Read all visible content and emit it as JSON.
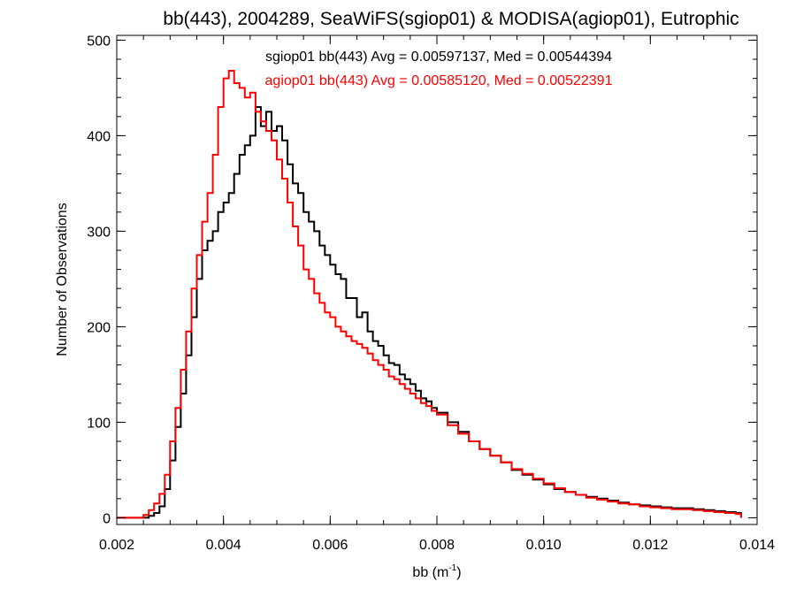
{
  "chart_data": {
    "type": "line",
    "title": "bb(443), 2004289, SeaWiFS(sgiop01) & MODISA(agiop01), Eutrophic",
    "xlabel_main": "bb (m",
    "xlabel_sup": "-1",
    "xlabel_close": ")",
    "ylabel": "Number of Observations",
    "xlim": [
      0.002,
      0.014
    ],
    "ylim": [
      -7,
      505
    ],
    "x_ticks": [
      "0.002",
      "0.004",
      "0.006",
      "0.008",
      "0.010",
      "0.012",
      "0.014"
    ],
    "y_ticks": [
      "0",
      "100",
      "200",
      "300",
      "400",
      "500"
    ],
    "grid": false,
    "step": true,
    "series": [
      {
        "name": "sgiop01 bb(443) Avg = 0.00597137, Med = 0.00544394",
        "color": "#000000",
        "points": [
          [
            0.002,
            0
          ],
          [
            0.0025,
            0
          ],
          [
            0.0026,
            2
          ],
          [
            0.0027,
            5
          ],
          [
            0.0028,
            12
          ],
          [
            0.0029,
            30
          ],
          [
            0.003,
            60
          ],
          [
            0.0031,
            95
          ],
          [
            0.0032,
            130
          ],
          [
            0.0033,
            170
          ],
          [
            0.0034,
            210
          ],
          [
            0.0035,
            250
          ],
          [
            0.0036,
            280
          ],
          [
            0.0037,
            290
          ],
          [
            0.0038,
            300
          ],
          [
            0.0039,
            320
          ],
          [
            0.004,
            330
          ],
          [
            0.0041,
            340
          ],
          [
            0.0042,
            360
          ],
          [
            0.0043,
            380
          ],
          [
            0.0044,
            390
          ],
          [
            0.0045,
            400
          ],
          [
            0.0046,
            430
          ],
          [
            0.0047,
            410
          ],
          [
            0.0048,
            425
          ],
          [
            0.0049,
            405
          ],
          [
            0.005,
            410
          ],
          [
            0.0051,
            395
          ],
          [
            0.0052,
            370
          ],
          [
            0.0053,
            350
          ],
          [
            0.0054,
            340
          ],
          [
            0.0055,
            320
          ],
          [
            0.0056,
            310
          ],
          [
            0.0057,
            300
          ],
          [
            0.0058,
            285
          ],
          [
            0.0059,
            275
          ],
          [
            0.006,
            265
          ],
          [
            0.0061,
            255
          ],
          [
            0.0062,
            250
          ],
          [
            0.0063,
            230
          ],
          [
            0.0064,
            230
          ],
          [
            0.0065,
            210
          ],
          [
            0.0066,
            215
          ],
          [
            0.0067,
            195
          ],
          [
            0.0068,
            185
          ],
          [
            0.0069,
            180
          ],
          [
            0.007,
            170
          ],
          [
            0.0071,
            162
          ],
          [
            0.0072,
            160
          ],
          [
            0.0073,
            150
          ],
          [
            0.0074,
            145
          ],
          [
            0.0075,
            140
          ],
          [
            0.0076,
            133
          ],
          [
            0.0077,
            125
          ],
          [
            0.0078,
            122
          ],
          [
            0.0079,
            115
          ],
          [
            0.008,
            110
          ],
          [
            0.0082,
            100
          ],
          [
            0.0084,
            90
          ],
          [
            0.0086,
            80
          ],
          [
            0.0088,
            72
          ],
          [
            0.009,
            65
          ],
          [
            0.0092,
            58
          ],
          [
            0.0094,
            50
          ],
          [
            0.0096,
            45
          ],
          [
            0.0098,
            40
          ],
          [
            0.01,
            35
          ],
          [
            0.0102,
            30
          ],
          [
            0.0104,
            27
          ],
          [
            0.0106,
            24
          ],
          [
            0.0108,
            22
          ],
          [
            0.011,
            20
          ],
          [
            0.0112,
            18
          ],
          [
            0.0114,
            16
          ],
          [
            0.0116,
            14
          ],
          [
            0.0118,
            13
          ],
          [
            0.012,
            12
          ],
          [
            0.0122,
            11
          ],
          [
            0.0124,
            10
          ],
          [
            0.0126,
            10
          ],
          [
            0.0128,
            9
          ],
          [
            0.013,
            8
          ],
          [
            0.0132,
            7
          ],
          [
            0.0134,
            6
          ],
          [
            0.0136,
            5
          ],
          [
            0.0137,
            0
          ]
        ]
      },
      {
        "name": "agiop01 bb(443) Avg = 0.00585120, Med = 0.00522391",
        "color": "#ff0000",
        "points": [
          [
            0.002,
            0
          ],
          [
            0.0024,
            0
          ],
          [
            0.0025,
            3
          ],
          [
            0.0026,
            8
          ],
          [
            0.0027,
            15
          ],
          [
            0.0028,
            25
          ],
          [
            0.0029,
            45
          ],
          [
            0.003,
            80
          ],
          [
            0.0031,
            115
          ],
          [
            0.0032,
            155
          ],
          [
            0.0033,
            195
          ],
          [
            0.0034,
            240
          ],
          [
            0.0035,
            275
          ],
          [
            0.0036,
            310
          ],
          [
            0.0037,
            340
          ],
          [
            0.0038,
            380
          ],
          [
            0.0039,
            430
          ],
          [
            0.004,
            460
          ],
          [
            0.0041,
            468
          ],
          [
            0.0042,
            455
          ],
          [
            0.0043,
            450
          ],
          [
            0.0044,
            440
          ],
          [
            0.0045,
            445
          ],
          [
            0.0046,
            425
          ],
          [
            0.0047,
            415
          ],
          [
            0.0048,
            405
          ],
          [
            0.0049,
            395
          ],
          [
            0.005,
            375
          ],
          [
            0.0051,
            355
          ],
          [
            0.0052,
            330
          ],
          [
            0.0053,
            305
          ],
          [
            0.0054,
            285
          ],
          [
            0.0055,
            260
          ],
          [
            0.0056,
            250
          ],
          [
            0.0057,
            235
          ],
          [
            0.0058,
            225
          ],
          [
            0.0059,
            215
          ],
          [
            0.006,
            210
          ],
          [
            0.0061,
            200
          ],
          [
            0.0062,
            195
          ],
          [
            0.0063,
            190
          ],
          [
            0.0064,
            185
          ],
          [
            0.0065,
            182
          ],
          [
            0.0066,
            178
          ],
          [
            0.0067,
            172
          ],
          [
            0.0068,
            165
          ],
          [
            0.0069,
            160
          ],
          [
            0.007,
            155
          ],
          [
            0.0071,
            148
          ],
          [
            0.0072,
            145
          ],
          [
            0.0073,
            140
          ],
          [
            0.0074,
            135
          ],
          [
            0.0075,
            130
          ],
          [
            0.0076,
            125
          ],
          [
            0.0077,
            120
          ],
          [
            0.0078,
            117
          ],
          [
            0.0079,
            112
          ],
          [
            0.008,
            108
          ],
          [
            0.0082,
            97
          ],
          [
            0.0084,
            88
          ],
          [
            0.0086,
            80
          ],
          [
            0.0088,
            72
          ],
          [
            0.009,
            65
          ],
          [
            0.0092,
            58
          ],
          [
            0.0094,
            51
          ],
          [
            0.0096,
            46
          ],
          [
            0.0098,
            41
          ],
          [
            0.01,
            36
          ],
          [
            0.0102,
            31
          ],
          [
            0.0104,
            27
          ],
          [
            0.0106,
            24
          ],
          [
            0.0108,
            21
          ],
          [
            0.011,
            19
          ],
          [
            0.0112,
            17
          ],
          [
            0.0114,
            15
          ],
          [
            0.0116,
            14
          ],
          [
            0.0118,
            12
          ],
          [
            0.012,
            11
          ],
          [
            0.0122,
            10
          ],
          [
            0.0124,
            9
          ],
          [
            0.0126,
            9
          ],
          [
            0.0128,
            8
          ],
          [
            0.013,
            7
          ],
          [
            0.0132,
            6
          ],
          [
            0.0134,
            5
          ],
          [
            0.0136,
            4
          ],
          [
            0.0137,
            0
          ]
        ]
      }
    ]
  }
}
